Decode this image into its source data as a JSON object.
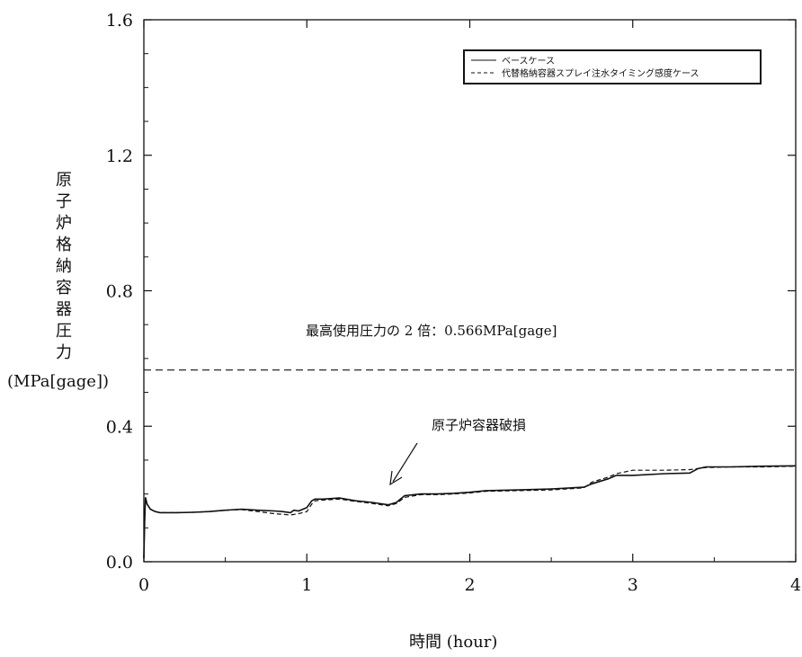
{
  "chart_data": {
    "type": "line",
    "title": "",
    "xlabel": "時間 (hour)",
    "ylabel_chars": [
      "原",
      "子",
      "炉",
      "格",
      "納",
      "容",
      "器",
      "圧",
      "力"
    ],
    "ylabel_unit": "(MPa[gage])",
    "xlim": [
      0,
      4
    ],
    "ylim": [
      0,
      1.6
    ],
    "xticks": [
      0,
      1,
      2,
      3,
      4
    ],
    "xtick_labels": [
      "0",
      "1",
      "2",
      "3",
      "4"
    ],
    "yticks": [
      0,
      0.4,
      0.8,
      1.2,
      1.6
    ],
    "ytick_labels": [
      "0.0",
      "0.4",
      "0.8",
      "1.2",
      "1.6"
    ],
    "grid": false,
    "legend_position": "top-right",
    "series": [
      {
        "name": "ベースケース",
        "style": "solid",
        "x": [
          0,
          0.005,
          0.01,
          0.02,
          0.04,
          0.07,
          0.1,
          0.2,
          0.3,
          0.4,
          0.5,
          0.6,
          0.7,
          0.8,
          0.85,
          0.9,
          0.92,
          0.95,
          1.0,
          1.03,
          1.05,
          1.1,
          1.2,
          1.3,
          1.4,
          1.5,
          1.55,
          1.6,
          1.7,
          1.8,
          1.9,
          2.0,
          2.1,
          2.3,
          2.5,
          2.7,
          2.75,
          2.85,
          2.9,
          3.0,
          3.2,
          3.35,
          3.4,
          3.45,
          3.6,
          3.8,
          4.0
        ],
        "y": [
          0.01,
          0.12,
          0.19,
          0.17,
          0.155,
          0.148,
          0.145,
          0.145,
          0.146,
          0.148,
          0.152,
          0.155,
          0.152,
          0.15,
          0.148,
          0.145,
          0.152,
          0.15,
          0.16,
          0.18,
          0.185,
          0.185,
          0.188,
          0.18,
          0.175,
          0.168,
          0.175,
          0.195,
          0.2,
          0.2,
          0.202,
          0.205,
          0.21,
          0.212,
          0.215,
          0.22,
          0.23,
          0.245,
          0.255,
          0.255,
          0.26,
          0.262,
          0.275,
          0.28,
          0.28,
          0.282,
          0.283
        ]
      },
      {
        "name": "代替格納容器スプレイ注水タイミング感度ケース",
        "style": "dashed",
        "x": [
          0,
          0.005,
          0.01,
          0.02,
          0.04,
          0.07,
          0.1,
          0.2,
          0.3,
          0.4,
          0.5,
          0.6,
          0.7,
          0.8,
          0.85,
          0.9,
          0.95,
          1.0,
          1.03,
          1.05,
          1.1,
          1.2,
          1.3,
          1.4,
          1.5,
          1.55,
          1.6,
          1.7,
          1.8,
          1.9,
          2.0,
          2.1,
          2.3,
          2.5,
          2.7,
          2.75,
          2.85,
          2.9,
          3.0,
          3.2,
          3.35,
          3.4,
          3.45,
          3.6,
          3.8,
          4.0
        ],
        "y": [
          0.01,
          0.12,
          0.19,
          0.17,
          0.155,
          0.148,
          0.145,
          0.145,
          0.146,
          0.148,
          0.152,
          0.154,
          0.148,
          0.142,
          0.14,
          0.138,
          0.142,
          0.148,
          0.17,
          0.18,
          0.182,
          0.185,
          0.178,
          0.172,
          0.165,
          0.172,
          0.19,
          0.198,
          0.198,
          0.2,
          0.203,
          0.208,
          0.21,
          0.212,
          0.218,
          0.235,
          0.25,
          0.26,
          0.27,
          0.27,
          0.272,
          0.275,
          0.278,
          0.28,
          0.28,
          0.282
        ]
      }
    ],
    "reference_line": {
      "y": 0.566,
      "style": "dashed",
      "label": "最高使用圧力の 2 倍：0.566MPa[gage]"
    },
    "annotations": [
      {
        "text": "原子炉容器破損",
        "arrow_to": {
          "x": 1.52,
          "y": 0.23
        }
      }
    ],
    "colors": {
      "line": "#111111",
      "background": "#ffffff"
    }
  }
}
